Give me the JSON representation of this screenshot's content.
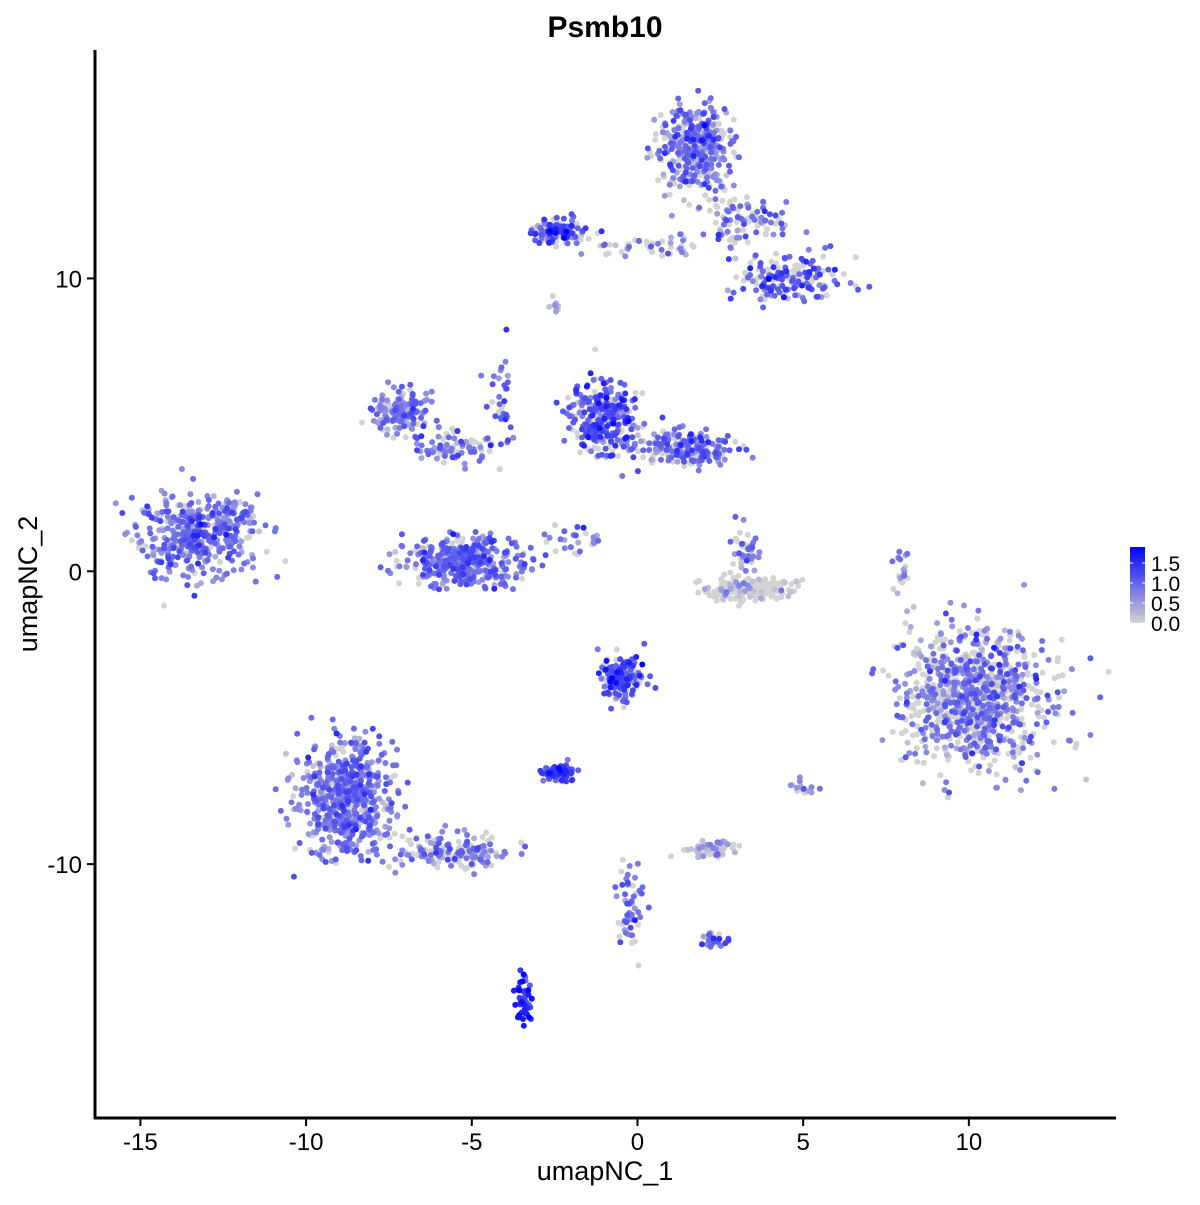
{
  "chart_data": {
    "type": "scatter",
    "title": "Psmb10",
    "xlabel": "umapNC_1",
    "ylabel": "umapNC_2",
    "xlim": [
      -16.37,
      14.44
    ],
    "ylim": [
      -18.67,
      17.8
    ],
    "x_ticks": [
      -15,
      -10,
      -5,
      0,
      5,
      10
    ],
    "x_tick_labels": [
      "-15",
      "-10",
      "-5",
      "0",
      "5",
      "10"
    ],
    "y_ticks": [
      -10,
      0,
      10
    ],
    "y_tick_labels": [
      "-10",
      "0",
      "10"
    ],
    "grid": false,
    "legend": {
      "placement": "right",
      "type": "colorbar",
      "range": [
        0,
        1.9
      ],
      "ticks": [
        0.0,
        0.5,
        1.0,
        1.5
      ],
      "tick_labels": [
        "0.0",
        "0.5",
        "1.0",
        "1.5"
      ],
      "color_low": "#d3d3d3",
      "color_high": "#0000ff"
    },
    "point_groups": [
      {
        "center": [
          -13.35,
          1.2
        ],
        "spread": [
          1.3,
          1.0
        ],
        "n": 420,
        "mean_expression": 0.8,
        "zero_fraction": 0.12
      },
      {
        "center": [
          -12.0,
          2.0
        ],
        "spread": [
          0.4,
          0.5
        ],
        "n": 30,
        "mean_expression": 0.8,
        "zero_fraction": 0.2
      },
      {
        "center": [
          1.75,
          14.4
        ],
        "spread": [
          0.8,
          1.1
        ],
        "n": 380,
        "mean_expression": 0.8,
        "zero_fraction": 0.3
      },
      {
        "center": [
          3.2,
          12.0
        ],
        "spread": [
          1.0,
          0.6
        ],
        "n": 90,
        "mean_expression": 0.9,
        "zero_fraction": 0.4
      },
      {
        "center": [
          -2.4,
          11.6
        ],
        "spread": [
          0.6,
          0.3
        ],
        "n": 140,
        "mean_expression": 1.1,
        "zero_fraction": 0.25
      },
      {
        "center": [
          0.3,
          11.1
        ],
        "spread": [
          1.5,
          0.25
        ],
        "n": 50,
        "mean_expression": 0.8,
        "zero_fraction": 0.5
      },
      {
        "center": [
          4.5,
          10.0
        ],
        "spread": [
          1.2,
          0.6
        ],
        "n": 180,
        "mean_expression": 1.0,
        "zero_fraction": 0.35
      },
      {
        "center": [
          -1.0,
          5.2
        ],
        "spread": [
          0.7,
          0.9
        ],
        "n": 320,
        "mean_expression": 1.1,
        "zero_fraction": 0.2
      },
      {
        "center": [
          1.6,
          4.2
        ],
        "spread": [
          1.0,
          0.4
        ],
        "n": 200,
        "mean_expression": 0.9,
        "zero_fraction": 0.35
      },
      {
        "center": [
          -7.2,
          5.4
        ],
        "spread": [
          0.6,
          0.5
        ],
        "n": 150,
        "mean_expression": 0.7,
        "zero_fraction": 0.2
      },
      {
        "center": [
          -5.5,
          4.2
        ],
        "spread": [
          0.9,
          0.4
        ],
        "n": 90,
        "mean_expression": 0.7,
        "zero_fraction": 0.35
      },
      {
        "center": [
          -4.2,
          6.0
        ],
        "spread": [
          0.3,
          1.3
        ],
        "n": 30,
        "mean_expression": 1.0,
        "zero_fraction": 0.2
      },
      {
        "center": [
          -5.2,
          0.3
        ],
        "spread": [
          1.3,
          0.6
        ],
        "n": 380,
        "mean_expression": 0.9,
        "zero_fraction": 0.15
      },
      {
        "center": [
          3.4,
          -0.65
        ],
        "spread": [
          0.9,
          0.25
        ],
        "n": 220,
        "mean_expression": 0.2,
        "zero_fraction": 0.85
      },
      {
        "center": [
          3.3,
          0.7
        ],
        "spread": [
          0.3,
          0.6
        ],
        "n": 40,
        "mean_expression": 0.8,
        "zero_fraction": 0.4
      },
      {
        "center": [
          10.2,
          -4.4
        ],
        "spread": [
          1.5,
          1.7
        ],
        "n": 950,
        "mean_expression": 0.8,
        "zero_fraction": 0.45
      },
      {
        "center": [
          -8.8,
          -7.8
        ],
        "spread": [
          1.0,
          1.4
        ],
        "n": 620,
        "mean_expression": 0.8,
        "zero_fraction": 0.15
      },
      {
        "center": [
          -5.5,
          -9.6
        ],
        "spread": [
          1.2,
          0.4
        ],
        "n": 160,
        "mean_expression": 0.8,
        "zero_fraction": 0.4
      },
      {
        "center": [
          -0.5,
          -3.7
        ],
        "spread": [
          0.5,
          0.6
        ],
        "n": 160,
        "mean_expression": 1.1,
        "zero_fraction": 0.25
      },
      {
        "center": [
          -2.4,
          -6.9
        ],
        "spread": [
          0.35,
          0.2
        ],
        "n": 70,
        "mean_expression": 1.2,
        "zero_fraction": 0.1
      },
      {
        "center": [
          2.2,
          -9.5
        ],
        "spread": [
          0.5,
          0.2
        ],
        "n": 70,
        "mean_expression": 0.4,
        "zero_fraction": 0.6
      },
      {
        "center": [
          -3.45,
          -14.6
        ],
        "spread": [
          0.2,
          0.6
        ],
        "n": 50,
        "mean_expression": 1.5,
        "zero_fraction": 0.05
      },
      {
        "center": [
          -0.2,
          -11.3
        ],
        "spread": [
          0.3,
          1.0
        ],
        "n": 50,
        "mean_expression": 0.9,
        "zero_fraction": 0.3
      },
      {
        "center": [
          2.3,
          -12.6
        ],
        "spread": [
          0.3,
          0.2
        ],
        "n": 25,
        "mean_expression": 1.0,
        "zero_fraction": 0.3
      },
      {
        "center": [
          8.0,
          -0.1
        ],
        "spread": [
          0.15,
          0.7
        ],
        "n": 20,
        "mean_expression": 0.7,
        "zero_fraction": 0.4
      },
      {
        "center": [
          -2.5,
          9.0
        ],
        "spread": [
          0.15,
          0.15
        ],
        "n": 10,
        "mean_expression": 0.6,
        "zero_fraction": 0.3
      },
      {
        "center": [
          -1.8,
          1.1
        ],
        "spread": [
          0.6,
          0.4
        ],
        "n": 25,
        "mean_expression": 1.0,
        "zero_fraction": 0.3
      },
      {
        "center": [
          5.0,
          -7.4
        ],
        "spread": [
          0.3,
          0.2
        ],
        "n": 15,
        "mean_expression": 0.6,
        "zero_fraction": 0.4
      }
    ]
  }
}
